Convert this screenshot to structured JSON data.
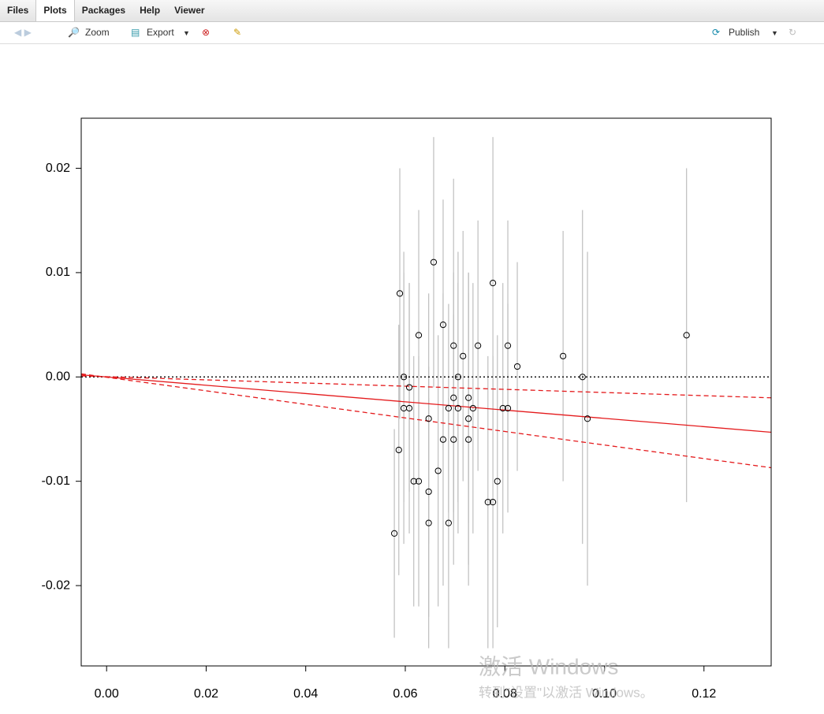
{
  "ui": {
    "tabs": [
      "Files",
      "Plots",
      "Packages",
      "Help",
      "Viewer"
    ],
    "active_tab": 1,
    "toolbar": {
      "zoom": "Zoom",
      "export": "Export",
      "publish": "Publish"
    },
    "watermark": {
      "title": "激活 Windows",
      "subtitle": "转到\"设置\"以激活 Windows。"
    }
  },
  "chart_data": {
    "type": "scatter",
    "xlim": [
      -0.0051,
      0.1335
    ],
    "ylim": [
      -0.0277,
      0.0248
    ],
    "xticks": [
      {
        "value": 0,
        "label": "0.00"
      },
      {
        "value": 0.02,
        "label": "0.02"
      },
      {
        "value": 0.04,
        "label": "0.04"
      },
      {
        "value": 0.06,
        "label": "0.06"
      },
      {
        "value": 0.08,
        "label": "0.08"
      },
      {
        "value": 0.1,
        "label": "0.10"
      },
      {
        "value": 0.12,
        "label": "0.12"
      }
    ],
    "yticks": [
      {
        "value": -0.02,
        "label": "-0.02"
      },
      {
        "value": -0.01,
        "label": "-0.01"
      },
      {
        "value": 0,
        "label": "0.00"
      },
      {
        "value": 0.01,
        "label": "0.01"
      },
      {
        "value": 0.02,
        "label": "0.02"
      }
    ],
    "x": [
      0.0578,
      0.0587,
      0.0589,
      0.0597,
      0.0597,
      0.0608,
      0.0608,
      0.0617,
      0.0627,
      0.0627,
      0.0647,
      0.0647,
      0.0647,
      0.0657,
      0.0666,
      0.0676,
      0.0676,
      0.0687,
      0.0687,
      0.0697,
      0.0697,
      0.0697,
      0.0706,
      0.0706,
      0.0716,
      0.0727,
      0.0727,
      0.0727,
      0.0736,
      0.0746,
      0.0766,
      0.0776,
      0.0776,
      0.0785,
      0.0796,
      0.0806,
      0.0806,
      0.0825,
      0.0917,
      0.0956,
      0.0966,
      0.1165
    ],
    "series": [
      {
        "color": "#000000",
        "error_color": "#bebebe",
        "values": [
          -0.015,
          -0.007,
          0.008,
          0,
          -0.003,
          -0.001,
          -0.003,
          -0.01,
          -0.01,
          0.004,
          -0.004,
          -0.011,
          -0.014,
          0.011,
          -0.009,
          0.005,
          -0.006,
          -0.003,
          -0.014,
          0.003,
          -0.002,
          -0.006,
          0,
          -0.003,
          0.002,
          -0.002,
          -0.004,
          -0.006,
          -0.003,
          0.003,
          -0.012,
          -0.012,
          0.009,
          -0.01,
          -0.003,
          0.003,
          -0.003,
          0.001,
          0.002,
          0,
          -0.004,
          0.004
        ],
        "errors": [
          0.01,
          0.012,
          0.012,
          0.012,
          0.013,
          0.01,
          0.012,
          0.012,
          0.012,
          0.012,
          0.012,
          0.012,
          0.012,
          0.012,
          0.013,
          0.012,
          0.014,
          0.01,
          0.012,
          0.016,
          0.012,
          0.012,
          0.012,
          0.012,
          0.012,
          0.012,
          0.014,
          0.014,
          0.012,
          0.012,
          0.014,
          0.014,
          0.014,
          0.014,
          0.012,
          0.012,
          0.01,
          0.01,
          0.012,
          0.016,
          0.016,
          0.016
        ]
      }
    ],
    "lines": [
      {
        "x": [
          -0.0051,
          0.1335
        ],
        "values": [
          0,
          0
        ],
        "color": "#000000",
        "style": "dotted"
      },
      {
        "x": [
          -0.0051,
          0.1335
        ],
        "values": [
          0.0002,
          -0.0053
        ],
        "color": "#e41a1c",
        "style": "solid"
      },
      {
        "x": [
          -0.0051,
          0.1335
        ],
        "values": [
          0.0001,
          -0.002
        ],
        "color": "#e41a1c",
        "style": "dashed"
      },
      {
        "x": [
          -0.0051,
          0.1335
        ],
        "values": [
          0.0003,
          -0.0087
        ],
        "color": "#e41a1c",
        "style": "dashed"
      }
    ]
  }
}
